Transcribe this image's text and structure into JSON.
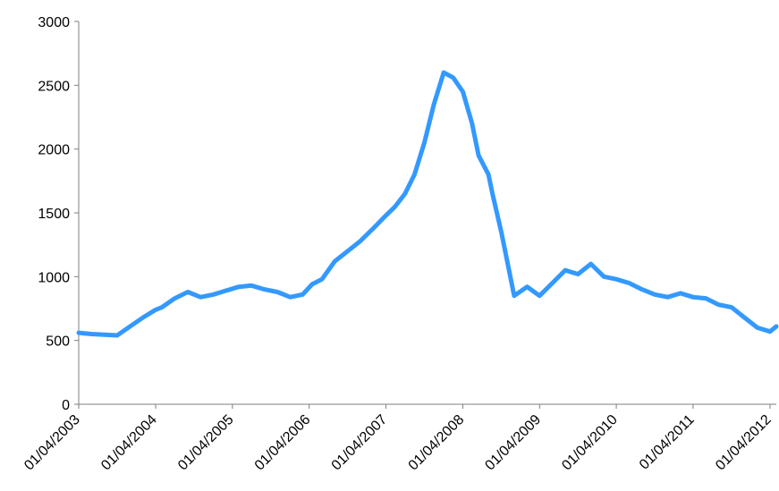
{
  "chart_data": {
    "type": "line",
    "title": "",
    "xlabel": "",
    "ylabel": "",
    "x_tick_labels": [
      "01/04/2003",
      "01/04/2004",
      "01/04/2005",
      "01/04/2006",
      "01/04/2007",
      "01/04/2008",
      "01/04/2009",
      "01/04/2010",
      "01/04/2011",
      "01/04/2012"
    ],
    "y_tick_labels": [
      "0",
      "500",
      "1000",
      "1500",
      "2000",
      "2500",
      "3000"
    ],
    "ylim": [
      0,
      3000
    ],
    "xlim": [
      "2003-04-01",
      "2012-05-01"
    ],
    "grid": false,
    "legend": "none",
    "series": [
      {
        "color": "#3399ff",
        "x": [
          "2003-04-01",
          "2003-06-01",
          "2003-08-01",
          "2003-10-01",
          "2003-12-01",
          "2004-02-01",
          "2004-04-01",
          "2004-05-01",
          "2004-07-01",
          "2004-09-01",
          "2004-11-01",
          "2005-01-01",
          "2005-03-01",
          "2005-05-01",
          "2005-07-01",
          "2005-09-01",
          "2005-11-01",
          "2006-01-01",
          "2006-03-01",
          "2006-04-15",
          "2006-06-01",
          "2006-08-01",
          "2006-10-01",
          "2006-12-01",
          "2007-02-01",
          "2007-04-01",
          "2007-05-15",
          "2007-07-01",
          "2007-08-15",
          "2007-10-01",
          "2007-11-15",
          "2008-01-01",
          "2008-02-15",
          "2008-04-01",
          "2008-05-15",
          "2008-06-15",
          "2008-08-01",
          "2008-08-20",
          "2008-10-01",
          "2008-12-01",
          "2009-02-01",
          "2009-04-01",
          "2009-06-01",
          "2009-08-01",
          "2009-10-01",
          "2009-12-01",
          "2010-02-01",
          "2010-04-01",
          "2010-06-01",
          "2010-08-01",
          "2010-10-01",
          "2010-12-01",
          "2011-02-01",
          "2011-04-01",
          "2011-06-01",
          "2011-08-01",
          "2011-10-01",
          "2011-12-01",
          "2012-02-01",
          "2012-04-01",
          "2012-05-01"
        ],
        "values": [
          560,
          550,
          545,
          540,
          610,
          680,
          740,
          760,
          830,
          880,
          840,
          860,
          890,
          920,
          930,
          900,
          880,
          840,
          860,
          940,
          980,
          1120,
          1200,
          1280,
          1380,
          1480,
          1550,
          1650,
          1800,
          2050,
          2350,
          2600,
          2560,
          2450,
          2200,
          1950,
          1800,
          1650,
          1350,
          850,
          920,
          850,
          950,
          1050,
          1020,
          1100,
          1000,
          980,
          950,
          900,
          860,
          840,
          870,
          840,
          830,
          780,
          760,
          680,
          600,
          570,
          610
        ]
      }
    ]
  }
}
